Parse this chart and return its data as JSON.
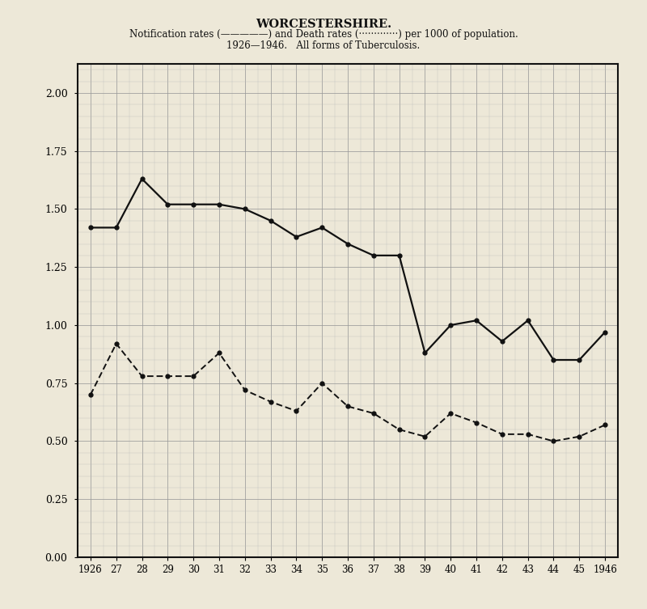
{
  "years": [
    1926,
    1927,
    1928,
    1929,
    1930,
    1931,
    1932,
    1933,
    1934,
    1935,
    1936,
    1937,
    1938,
    1939,
    1940,
    1941,
    1942,
    1943,
    1944,
    1945,
    1946
  ],
  "notification_rates": [
    1.42,
    1.42,
    1.63,
    1.52,
    1.52,
    1.52,
    1.5,
    1.45,
    1.38,
    1.42,
    1.35,
    1.3,
    1.3,
    0.88,
    1.0,
    1.02,
    0.93,
    1.02,
    0.85,
    0.85,
    0.97
  ],
  "death_rates": [
    0.7,
    0.92,
    0.78,
    0.78,
    0.78,
    0.88,
    0.72,
    0.67,
    0.63,
    0.75,
    0.65,
    0.62,
    0.55,
    0.52,
    0.62,
    0.58,
    0.53,
    0.53,
    0.5,
    0.52,
    0.57
  ],
  "title": "WORCESTERSHIRE.",
  "subtitle1": "Notification rates (—————) and Death rates (·············) per 1000 of population.",
  "subtitle2": "1926—1946.   All forms of Tuberculosis.",
  "xlim": [
    1925.5,
    1946.5
  ],
  "ylim": [
    0.0,
    2.125
  ],
  "yticks": [
    0.0,
    0.25,
    0.5,
    0.75,
    1.0,
    1.25,
    1.5,
    1.75,
    2.0
  ],
  "bg_color": "#ede8d8",
  "plot_bg_color": "#ede8d8",
  "line_color": "#111111",
  "grid_major_color": "#999999",
  "grid_minor_color": "#bbbbbb"
}
